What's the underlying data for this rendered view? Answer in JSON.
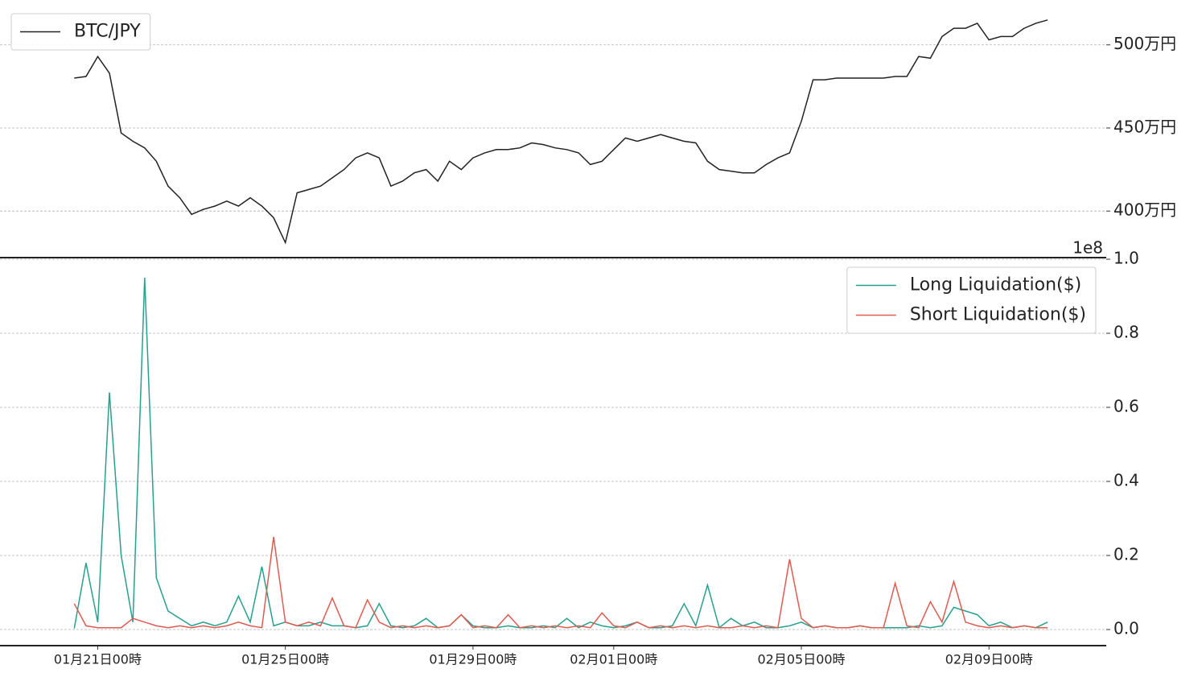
{
  "chart_data": [
    {
      "type": "line",
      "legend": "upper left",
      "grid": true,
      "x": [
        "01月20日12時",
        "01月20日18時",
        "01月21日00時",
        "01月21日06時",
        "01月21日12時",
        "01月21日18時",
        "01月22日00時",
        "01月22日06時",
        "01月22日12時",
        "01月22日18時",
        "01月23日00時",
        "01月23日06時",
        "01月23日12時",
        "01月23日18時",
        "01月24日00時",
        "01月24日06時",
        "01月24日12時",
        "01月24日18時",
        "01月25日00時",
        "01月25日06時",
        "01月25日12時",
        "01月25日18時",
        "01月26日00時",
        "01月26日06時",
        "01月26日12時",
        "01月26日18時",
        "01月27日00時",
        "01月27日06時",
        "01月27日12時",
        "01月27日18時",
        "01月28日00時",
        "01月28日06時",
        "01月28日12時",
        "01月28日18時",
        "01月29日00時",
        "01月29日06時",
        "01月29日12時",
        "01月29日18時",
        "01月30日00時",
        "01月30日06時",
        "01月30日12時",
        "01月30日18時",
        "01月31日00時",
        "01月31日06時",
        "01月31日12時",
        "01月31日18時",
        "02月01日00時",
        "02月01日06時",
        "02月01日12時",
        "02月01日18時",
        "02月02日00時",
        "02月02日06時",
        "02月02日12時",
        "02月02日18時",
        "02月03日00時",
        "02月03日06時",
        "02月03日12時",
        "02月03日18時",
        "02月04日00時",
        "02月04日06時",
        "02月04日12時",
        "02月04日18時",
        "02月05日00時",
        "02月05日06時",
        "02月05日12時",
        "02月05日18時",
        "02月06日00時",
        "02月06日06時",
        "02月06日12時",
        "02月06日18時",
        "02月07日00時",
        "02月07日06時",
        "02月07日12時",
        "02月07日18時",
        "02月08日00時",
        "02月08日06時",
        "02月08日12時",
        "02月08日18時",
        "02月09日00時",
        "02月09日06時",
        "02月09日12時",
        "02月09日18時",
        "02月10日00時",
        "02月10日06時"
      ],
      "series": [
        {
          "name": "BTC/JPY",
          "color": "#222222",
          "values": [
            4800000,
            4810000,
            4930000,
            4830000,
            4470000,
            4420000,
            4380000,
            4300000,
            4150000,
            4080000,
            3980000,
            4010000,
            4030000,
            4060000,
            4030000,
            4080000,
            4030000,
            3960000,
            3810000,
            4110000,
            4130000,
            4150000,
            4200000,
            4250000,
            4320000,
            4350000,
            4320000,
            4150000,
            4180000,
            4230000,
            4250000,
            4180000,
            4300000,
            4250000,
            4320000,
            4350000,
            4370000,
            4370000,
            4380000,
            4410000,
            4400000,
            4380000,
            4370000,
            4350000,
            4280000,
            4300000,
            4370000,
            4440000,
            4420000,
            4440000,
            4460000,
            4440000,
            4420000,
            4410000,
            4300000,
            4250000,
            4240000,
            4230000,
            4230000,
            4280000,
            4320000,
            4350000,
            4540000,
            4790000,
            4790000,
            4800000,
            4800000,
            4800000,
            4800000,
            4800000,
            4810000,
            4810000,
            4930000,
            4920000,
            5050000,
            5100000,
            5100000,
            5130000,
            5030000,
            5050000,
            5050000,
            5100000,
            5130000,
            5150000
          ]
        }
      ],
      "xlim": [
        "01月18日22時",
        "02月11日12時"
      ],
      "ylim": [
        3720000,
        5270000
      ],
      "yticks": [
        {
          "value": 4000000,
          "label": "400万円"
        },
        {
          "value": 4500000,
          "label": "450万円"
        },
        {
          "value": 5000000,
          "label": "500万円"
        }
      ]
    },
    {
      "type": "line",
      "legend": "upper right",
      "grid": true,
      "offset_label": "1e8",
      "x": [
        "01月20日12時",
        "01月20日18時",
        "01月21日00時",
        "01月21日06時",
        "01月21日12時",
        "01月21日18時",
        "01月22日00時",
        "01月22日06時",
        "01月22日12時",
        "01月22日18時",
        "01月23日00時",
        "01月23日06時",
        "01月23日12時",
        "01月23日18時",
        "01月24日00時",
        "01月24日06時",
        "01月24日12時",
        "01月24日18時",
        "01月25日00時",
        "01月25日06時",
        "01月25日12時",
        "01月25日18時",
        "01月26日00時",
        "01月26日06時",
        "01月26日12時",
        "01月26日18時",
        "01月27日00時",
        "01月27日06時",
        "01月27日12時",
        "01月27日18時",
        "01月28日00時",
        "01月28日06時",
        "01月28日12時",
        "01月28日18時",
        "01月29日00時",
        "01月29日06時",
        "01月29日12時",
        "01月29日18時",
        "01月30日00時",
        "01月30日06時",
        "01月30日12時",
        "01月30日18時",
        "01月31日00時",
        "01月31日06時",
        "01月31日12時",
        "01月31日18時",
        "02月01日00時",
        "02月01日06時",
        "02月01日12時",
        "02月01日18時",
        "02月02日00時",
        "02月02日06時",
        "02月02日12時",
        "02月02日18時",
        "02月03日00時",
        "02月03日06時",
        "02月03日12時",
        "02月03日18時",
        "02月04日00時",
        "02月04日06時",
        "02月04日12時",
        "02月04日18時",
        "02月05日00時",
        "02月05日06時",
        "02月05日12時",
        "02月05日18時",
        "02月06日00時",
        "02月06日06時",
        "02月06日12時",
        "02月06日18時",
        "02月07日00時",
        "02月07日06時",
        "02月07日12時",
        "02月07日18時",
        "02月08日00時",
        "02月08日06時",
        "02月08日12時",
        "02月08日18時",
        "02月09日00時",
        "02月09日06時",
        "02月09日12時",
        "02月09日18時",
        "02月10日00時",
        "02月10日06時"
      ],
      "series": [
        {
          "name": "Long Liquidation($)",
          "color": "#26a08f",
          "values": [
            0.003,
            0.18,
            0.02,
            0.64,
            0.2,
            0.02,
            0.95,
            0.14,
            0.05,
            0.03,
            0.01,
            0.02,
            0.01,
            0.02,
            0.09,
            0.02,
            0.17,
            0.01,
            0.02,
            0.01,
            0.01,
            0.02,
            0.01,
            0.01,
            0.005,
            0.01,
            0.07,
            0.01,
            0.005,
            0.01,
            0.03,
            0.005,
            0.01,
            0.04,
            0.01,
            0.005,
            0.005,
            0.01,
            0.005,
            0.005,
            0.01,
            0.005,
            0.03,
            0.005,
            0.02,
            0.01,
            0.005,
            0.01,
            0.02,
            0.005,
            0.005,
            0.01,
            0.07,
            0.01,
            0.12,
            0.005,
            0.03,
            0.01,
            0.02,
            0.005,
            0.005,
            0.01,
            0.02,
            0.005,
            0.01,
            0.005,
            0.005,
            0.01,
            0.005,
            0.005,
            0.005,
            0.005,
            0.01,
            0.005,
            0.01,
            0.06,
            0.05,
            0.04,
            0.01,
            0.02,
            0.005,
            0.01,
            0.005,
            0.02
          ]
        },
        {
          "name": "Short Liquidation($)",
          "color": "#e05a4f",
          "values": [
            0.07,
            0.01,
            0.005,
            0.005,
            0.005,
            0.03,
            0.02,
            0.01,
            0.005,
            0.01,
            0.005,
            0.01,
            0.005,
            0.01,
            0.02,
            0.01,
            0.005,
            0.25,
            0.02,
            0.01,
            0.02,
            0.01,
            0.085,
            0.01,
            0.005,
            0.08,
            0.02,
            0.005,
            0.01,
            0.005,
            0.01,
            0.005,
            0.01,
            0.04,
            0.005,
            0.01,
            0.005,
            0.04,
            0.005,
            0.01,
            0.005,
            0.01,
            0.005,
            0.01,
            0.005,
            0.045,
            0.01,
            0.005,
            0.02,
            0.005,
            0.01,
            0.005,
            0.01,
            0.005,
            0.01,
            0.005,
            0.005,
            0.01,
            0.005,
            0.01,
            0.005,
            0.19,
            0.03,
            0.005,
            0.01,
            0.005,
            0.005,
            0.01,
            0.005,
            0.005,
            0.125,
            0.01,
            0.005,
            0.075,
            0.02,
            0.13,
            0.02,
            0.01,
            0.005,
            0.01,
            0.005,
            0.01,
            0.005,
            0.005
          ]
        }
      ],
      "xlim": [
        "01月18日22時",
        "02月11日12時"
      ],
      "ylim": [
        -0.0435,
        1.0
      ],
      "yticks": [
        {
          "value": 0,
          "label": "0.0"
        },
        0.2,
        0.4,
        0.6,
        0.8,
        {
          "value": 1,
          "label": "1.0"
        }
      ],
      "xticks": [
        "01月21日00時",
        "01月25日00時",
        "01月29日00時",
        "02月01日00時",
        "02月05日00時",
        "02月09日00時"
      ]
    }
  ]
}
